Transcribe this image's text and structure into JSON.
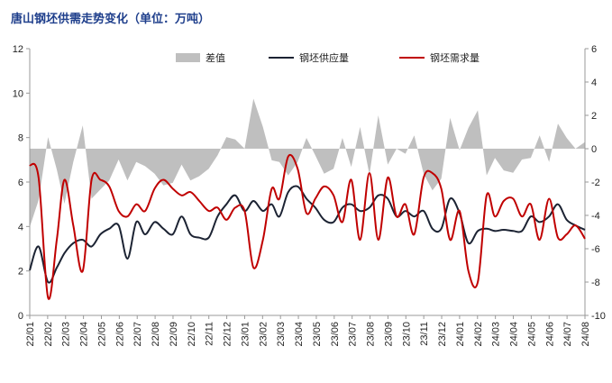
{
  "title": "唐山钢坯供需走势变化（单位：万吨）",
  "colors": {
    "diff": "#bfbfbf",
    "supply": "#1c2333",
    "demand": "#c00000",
    "title": "#1f3f8c"
  },
  "chart_data": {
    "type": "line",
    "title": "唐山钢坯供需走势变化（单位：万吨）",
    "legend_position": "top",
    "grid": false,
    "y_left": {
      "range": [
        0,
        12
      ],
      "ticks": [
        0,
        2,
        4,
        6,
        8,
        10,
        12
      ]
    },
    "y_right": {
      "range": [
        -10,
        6
      ],
      "ticks": [
        -10,
        -8,
        -6,
        -4,
        -2,
        0,
        2,
        4,
        6
      ]
    },
    "x_tick_labels": [
      "22/01",
      "22/02",
      "22/03",
      "22/04",
      "22/05",
      "22/06",
      "22/07",
      "22/08",
      "22/09",
      "22/10",
      "22/11",
      "22/12",
      "23/01",
      "23/02",
      "23/03",
      "23/04",
      "23/05",
      "23/06",
      "23/07",
      "23/08",
      "23/09",
      "23/10",
      "23/11",
      "23/12",
      "24/01",
      "24/02",
      "24/03",
      "24/04",
      "24/05",
      "24/06",
      "24/07",
      "24/08"
    ],
    "x": [
      "2022-01-01",
      "2022-01-16",
      "2022-02-01",
      "2022-02-16",
      "2022-03-01",
      "2022-03-16",
      "2022-04-01",
      "2022-04-16",
      "2022-05-01",
      "2022-05-16",
      "2022-06-01",
      "2022-06-16",
      "2022-07-01",
      "2022-07-16",
      "2022-08-01",
      "2022-08-16",
      "2022-09-01",
      "2022-09-16",
      "2022-10-01",
      "2022-10-16",
      "2022-11-01",
      "2022-11-16",
      "2022-12-01",
      "2022-12-16",
      "2023-01-01",
      "2023-01-16",
      "2023-02-01",
      "2023-02-16",
      "2023-03-01",
      "2023-03-16",
      "2023-04-01",
      "2023-04-16",
      "2023-05-01",
      "2023-05-16",
      "2023-06-01",
      "2023-06-16",
      "2023-07-01",
      "2023-07-16",
      "2023-08-01",
      "2023-08-16",
      "2023-09-01",
      "2023-09-16",
      "2023-10-01",
      "2023-10-16",
      "2023-11-01",
      "2023-11-16",
      "2023-12-01",
      "2023-12-16",
      "2024-01-01",
      "2024-01-16",
      "2024-02-01",
      "2024-02-16",
      "2024-03-01",
      "2024-03-16",
      "2024-04-01",
      "2024-04-16",
      "2024-05-01",
      "2024-05-16",
      "2024-06-01",
      "2024-06-16",
      "2024-07-01",
      "2024-07-16",
      "2024-08-01"
    ],
    "series": [
      {
        "name": "差值",
        "type": "area",
        "axis": "right",
        "values": [
          -4.7,
          -3.1,
          0.7,
          -1.25,
          -3.3,
          -0.8,
          1.4,
          -3.0,
          -2.45,
          -1.9,
          -0.65,
          -1.9,
          -0.8,
          -1.05,
          -1.5,
          -2.2,
          -2.05,
          -0.95,
          -1.9,
          -1.65,
          -1.2,
          -0.4,
          0.7,
          0.55,
          0,
          3.0,
          1.3,
          -0.7,
          -0.8,
          -1.6,
          -0.8,
          0.65,
          -0.4,
          -1.5,
          -1.2,
          0.65,
          -1.1,
          1.3,
          -1.55,
          2.0,
          -0.95,
          0,
          -0.3,
          0.8,
          -1.5,
          -2.5,
          -1.8,
          1.85,
          -0.1,
          1.25,
          2.3,
          -1.6,
          -0.55,
          -1.3,
          -1.45,
          -0.65,
          -0.55,
          0.8,
          -0.8,
          1.5,
          0.65,
          0,
          0.4
        ]
      },
      {
        "name": "钢坯供应量",
        "type": "line",
        "axis": "left",
        "values": [
          2.03,
          3.1,
          1.5,
          2.15,
          2.8,
          3.25,
          3.4,
          3.1,
          3.65,
          3.9,
          4.05,
          2.55,
          4.2,
          3.65,
          4.2,
          3.9,
          3.65,
          4.45,
          3.65,
          3.5,
          3.5,
          4.45,
          5.0,
          5.4,
          4.7,
          5.15,
          4.7,
          5.0,
          4.45,
          5.55,
          5.8,
          5.25,
          4.85,
          4.3,
          4.2,
          4.85,
          5.0,
          4.7,
          4.85,
          5.4,
          5.25,
          4.45,
          4.7,
          4.45,
          4.7,
          3.9,
          3.9,
          5.25,
          4.6,
          3.25,
          3.8,
          3.9,
          3.8,
          3.85,
          3.8,
          3.8,
          4.45,
          4.2,
          4.45,
          5.0,
          4.3,
          4.05,
          3.85
        ]
      },
      {
        "name": "钢坯需求量",
        "type": "line",
        "axis": "left",
        "values": [
          6.77,
          6.2,
          0.8,
          3.4,
          6.1,
          4.05,
          2.0,
          6.1,
          6.1,
          5.8,
          4.7,
          4.45,
          5.0,
          4.7,
          5.7,
          6.1,
          5.7,
          5.4,
          5.55,
          5.15,
          4.7,
          4.85,
          4.3,
          4.85,
          4.7,
          2.15,
          3.4,
          5.7,
          5.25,
          7.15,
          6.6,
          4.6,
          5.25,
          5.8,
          5.4,
          4.2,
          6.1,
          3.4,
          6.4,
          3.4,
          6.2,
          4.45,
          5.0,
          3.65,
          6.2,
          6.4,
          5.7,
          3.4,
          4.7,
          2.0,
          1.5,
          5.4,
          4.45,
          5.15,
          5.25,
          4.45,
          5.0,
          3.4,
          5.25,
          3.5,
          3.65,
          4.05,
          3.45
        ]
      }
    ]
  }
}
